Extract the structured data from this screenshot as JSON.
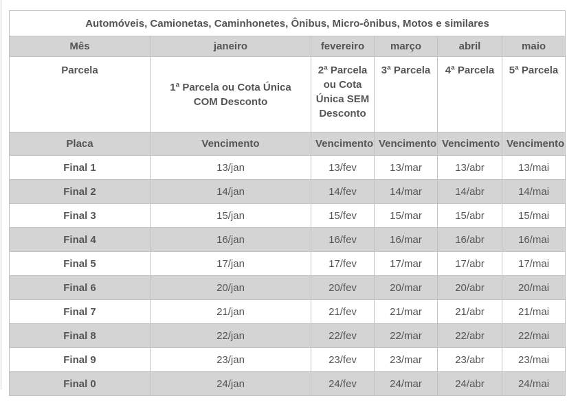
{
  "page": {
    "title": "Automóveis, Camionetas, Caminhonetes, Ônibus, Micro-ônibus, Motos e similares"
  },
  "colors": {
    "title_blue": "#16578c",
    "row_gray": "#d4d4d4",
    "border_gray": "#c2c2c2",
    "text_gray": "#555555"
  },
  "table": {
    "month_header": {
      "label": "Mês",
      "months": [
        "janeiro",
        "fevereiro",
        "março",
        "abril",
        "maio"
      ]
    },
    "parcela_header": {
      "label": "Parcela",
      "janeiro_lines": [
        "1ª Parcela ou Cota Única",
        "COM Desconto"
      ],
      "fevereiro_lines": [
        "2ª Parcela",
        "ou Cota",
        "Única SEM",
        "Desconto"
      ],
      "marco": "3ª Parcela",
      "abril": "4ª Parcela",
      "maio": "5ª Parcela"
    },
    "vencimento_header": {
      "label": "Placa",
      "cells": [
        "Vencimento",
        "Vencimento",
        "Vencimento",
        "Vencimento",
        "Vencimento"
      ]
    },
    "rows": [
      {
        "placa": "Final 1",
        "dates": [
          "13/jan",
          "13/fev",
          "13/mar",
          "13/abr",
          "13/mai"
        ]
      },
      {
        "placa": "Final 2",
        "dates": [
          "14/jan",
          "14/fev",
          "14/mar",
          "14/abr",
          "14/mai"
        ]
      },
      {
        "placa": "Final 3",
        "dates": [
          "15/jan",
          "15/fev",
          "15/mar",
          "15/abr",
          "15/mai"
        ]
      },
      {
        "placa": "Final 4",
        "dates": [
          "16/jan",
          "16/fev",
          "16/mar",
          "16/abr",
          "16/mai"
        ]
      },
      {
        "placa": "Final 5",
        "dates": [
          "17/jan",
          "17/fev",
          "17/mar",
          "17/abr",
          "17/mai"
        ]
      },
      {
        "placa": "Final 6",
        "dates": [
          "20/jan",
          "20/fev",
          "20/mar",
          "20/abr",
          "20/mai"
        ]
      },
      {
        "placa": "Final 7",
        "dates": [
          "21/jan",
          "21/fev",
          "21/mar",
          "21/abr",
          "21/mai"
        ]
      },
      {
        "placa": "Final 8",
        "dates": [
          "22/jan",
          "22/fev",
          "22/mar",
          "22/abr",
          "22/mai"
        ]
      },
      {
        "placa": "Final 9",
        "dates": [
          "23/jan",
          "23/fev",
          "23/mar",
          "23/abr",
          "23/mai"
        ]
      },
      {
        "placa": "Final 0",
        "dates": [
          "24/jan",
          "24/fev",
          "24/mar",
          "24/abr",
          "24/mai"
        ]
      }
    ]
  }
}
